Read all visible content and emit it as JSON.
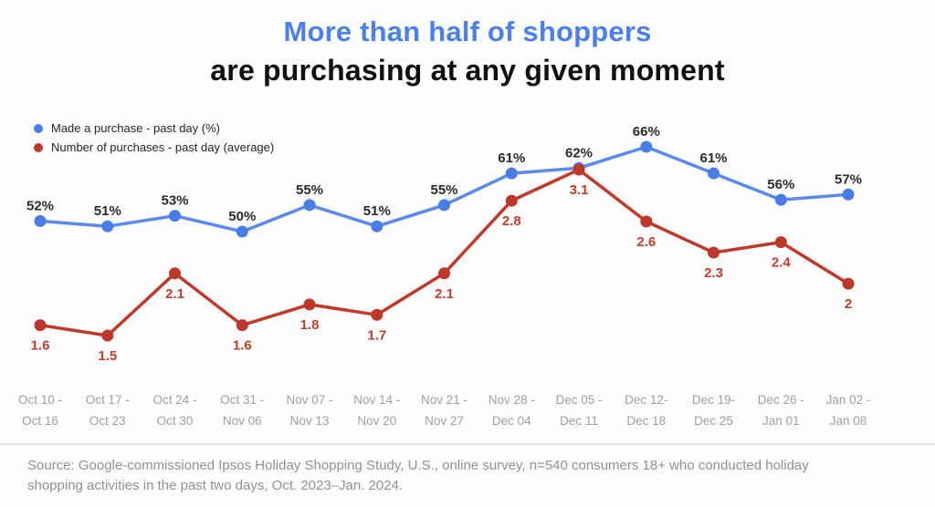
{
  "title": {
    "line1": "More than half of shoppers",
    "line2": "are purchasing at any given moment"
  },
  "colors": {
    "title_accent": "#4a80e8",
    "title_dark": "#101113",
    "blue_line": "#5b8aec",
    "blue_dot": "#4a7ce8",
    "red_line": "#c03a2c",
    "red_dot": "#bd382b",
    "blue_value_label_text": "#2b2b2b",
    "red_value_label_text": "#c23d2e",
    "axis_text": "#9d9fa2",
    "source_text": "#8e9296"
  },
  "chart_data": {
    "type": "line",
    "grid": false,
    "legend_position": "top-left",
    "categories": [
      {
        "line1": "Oct 10 -",
        "line2": "Oct 16"
      },
      {
        "line1": "Oct 17 -",
        "line2": "Oct 23"
      },
      {
        "line1": "Oct 24 -",
        "line2": "Oct 30"
      },
      {
        "line1": "Oct 31 -",
        "line2": "Nov 06"
      },
      {
        "line1": "Nov 07 -",
        "line2": "Nov 13"
      },
      {
        "line1": "Nov 14 -",
        "line2": "Nov 20"
      },
      {
        "line1": "Nov 21 -",
        "line2": "Nov 27"
      },
      {
        "line1": "Nov 28 -",
        "line2": "Dec 04"
      },
      {
        "line1": "Dec 05 -",
        "line2": "Dec 11"
      },
      {
        "line1": "Dec 12-",
        "line2": "Dec 18"
      },
      {
        "line1": "Dec 19-",
        "line2": "Dec 25"
      },
      {
        "line1": "Dec 26 -",
        "line2": "Jan 01"
      },
      {
        "line1": "Jan 02 -",
        "line2": "Jan 08"
      }
    ],
    "series": [
      {
        "id": "purchase-rate",
        "name": "Made a purchase - past day (%)",
        "color": "#5b8aec",
        "dot_color": "#4a7ce8",
        "label_color": "#2b2b2b",
        "label_position": "above",
        "values": [
          52,
          51,
          53,
          50,
          55,
          51,
          55,
          61,
          62,
          66,
          61,
          56,
          57
        ],
        "labels": [
          "52%",
          "51%",
          "53%",
          "50%",
          "55%",
          "51%",
          "55%",
          "61%",
          "62%",
          "66%",
          "61%",
          "56%",
          "57%"
        ]
      },
      {
        "id": "purchase-count",
        "name": "Number of purchases - past day (average)",
        "color": "#c03a2c",
        "dot_color": "#bd382b",
        "label_color": "#c23d2e",
        "label_position": "below",
        "values": [
          1.6,
          1.5,
          2.1,
          1.6,
          1.8,
          1.7,
          2.1,
          2.8,
          3.1,
          2.6,
          2.3,
          2.4,
          2
        ],
        "labels": [
          "1.6",
          "1.5",
          "2.1",
          "1.6",
          "1.8",
          "1.7",
          "2.1",
          "2.8",
          "3.1",
          "2.6",
          "2.3",
          "2.4",
          "2"
        ]
      }
    ]
  },
  "source": {
    "line1": "Source: Google-commissioned Ipsos Holiday Shopping Study, U.S., online survey, n=540 consumers 18+ who conducted holiday",
    "line2": "shopping activities in the past two days, Oct. 2023–Jan. 2024."
  }
}
